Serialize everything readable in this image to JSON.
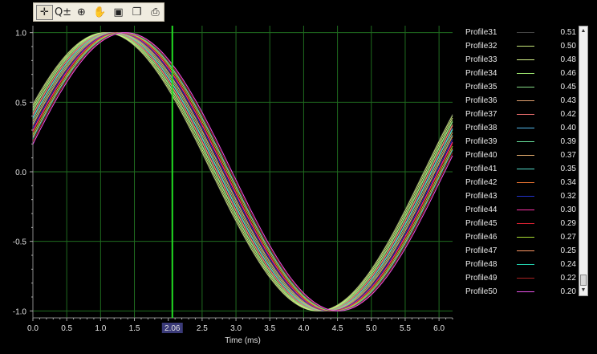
{
  "toolbar": {
    "tools": [
      {
        "name": "crosshair-icon",
        "glyph": "✛"
      },
      {
        "name": "zoom-axis-icon",
        "glyph": "Q±"
      },
      {
        "name": "zoom-icon",
        "glyph": "⊕"
      },
      {
        "name": "pan-hand-icon",
        "glyph": "✋"
      },
      {
        "name": "save-icon",
        "glyph": "▣"
      },
      {
        "name": "copy-icon",
        "glyph": "❐"
      },
      {
        "name": "print-icon",
        "glyph": "⎙"
      }
    ]
  },
  "cursor": {
    "x": 2.06,
    "label": "2.06",
    "color": "#22dd22"
  },
  "chart_data": {
    "type": "line",
    "xlabel": "Time (ms)",
    "ylabel": "",
    "xlim": [
      0,
      6.2
    ],
    "ylim": [
      -1.05,
      1.05
    ],
    "x_ticks": [
      "0.0",
      "0.5",
      "1.0",
      "1.5",
      "2.06",
      "2.5",
      "3.0",
      "3.5",
      "4.0",
      "4.5",
      "5.0",
      "5.5",
      "6.0"
    ],
    "y_ticks": [
      "1.0",
      "0.5",
      "0.0",
      "-0.5",
      "-1.0"
    ],
    "grid": true,
    "legend_position": "right",
    "function": "sin(x + phase)",
    "series": [
      {
        "name": "Profile31",
        "phase": 0.51,
        "value": "0.51",
        "color": "#444444"
      },
      {
        "name": "Profile32",
        "phase": 0.5,
        "value": "0.50",
        "color": "#c8e87a"
      },
      {
        "name": "Profile33",
        "phase": 0.48,
        "value": "0.48",
        "color": "#d6f28a"
      },
      {
        "name": "Profile34",
        "phase": 0.46,
        "value": "0.46",
        "color": "#9ee870"
      },
      {
        "name": "Profile35",
        "phase": 0.45,
        "value": "0.45",
        "color": "#88dd88"
      },
      {
        "name": "Profile36",
        "phase": 0.43,
        "value": "0.43",
        "color": "#e0a070"
      },
      {
        "name": "Profile37",
        "phase": 0.42,
        "value": "0.42",
        "color": "#ee7070"
      },
      {
        "name": "Profile38",
        "phase": 0.4,
        "value": "0.40",
        "color": "#55bbee"
      },
      {
        "name": "Profile39",
        "phase": 0.39,
        "value": "0.39",
        "color": "#66dd99"
      },
      {
        "name": "Profile40",
        "phase": 0.37,
        "value": "0.37",
        "color": "#e8b070"
      },
      {
        "name": "Profile41",
        "phase": 0.35,
        "value": "0.35",
        "color": "#55ddcc"
      },
      {
        "name": "Profile42",
        "phase": 0.34,
        "value": "0.34",
        "color": "#ee7733"
      },
      {
        "name": "Profile43",
        "phase": 0.32,
        "value": "0.32",
        "color": "#2233cc"
      },
      {
        "name": "Profile44",
        "phase": 0.3,
        "value": "0.30",
        "color": "#ff33aa"
      },
      {
        "name": "Profile45",
        "phase": 0.29,
        "value": "0.29",
        "color": "#dd2233"
      },
      {
        "name": "Profile46",
        "phase": 0.27,
        "value": "0.27",
        "color": "#aadd33"
      },
      {
        "name": "Profile47",
        "phase": 0.25,
        "value": "0.25",
        "color": "#ff9966"
      },
      {
        "name": "Profile48",
        "phase": 0.24,
        "value": "0.24",
        "color": "#22ccaa"
      },
      {
        "name": "Profile49",
        "phase": 0.22,
        "value": "0.22",
        "color": "#aa2222"
      },
      {
        "name": "Profile50",
        "phase": 0.2,
        "value": "0.20",
        "color": "#ee55ee"
      }
    ]
  }
}
